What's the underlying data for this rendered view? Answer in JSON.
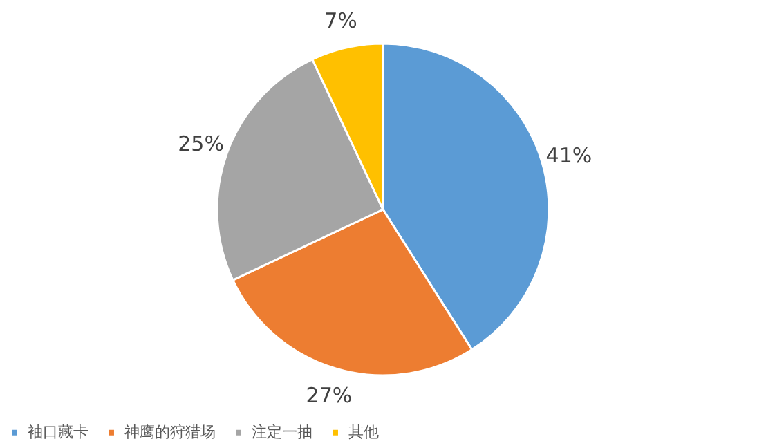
{
  "chart_data": {
    "type": "pie",
    "categories": [
      "袖口藏卡",
      "神鹰的狩猎场",
      "注定一抽",
      "其他"
    ],
    "values": [
      41,
      27,
      25,
      7
    ],
    "colors": [
      "#5b9bd5",
      "#ed7d31",
      "#a5a5a5",
      "#ffc000"
    ],
    "value_labels": [
      "41%",
      "27%",
      "25%",
      "7%"
    ],
    "legend": "bottom"
  }
}
